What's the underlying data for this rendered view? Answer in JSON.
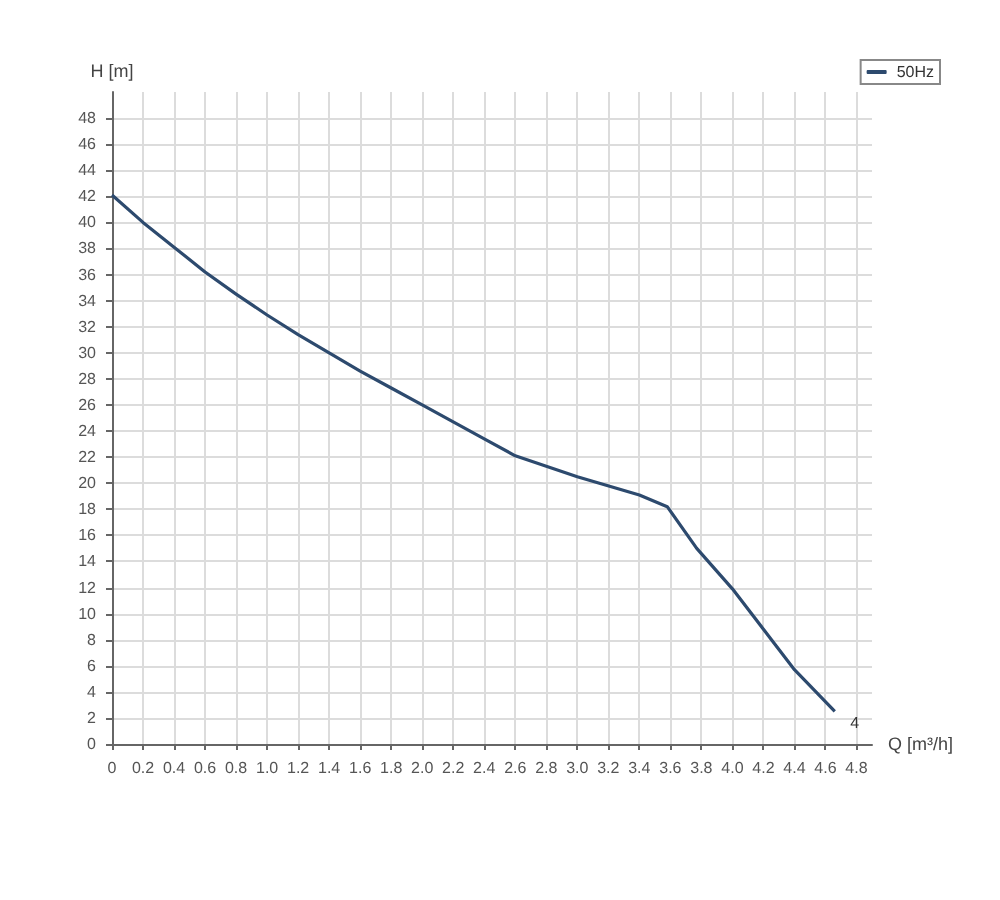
{
  "chart_data": {
    "type": "line",
    "xlabel": "Q [m³/h]",
    "ylabel": "H [m]",
    "x": [
      0,
      0.2,
      0.4,
      0.6,
      0.8,
      1.0,
      1.2,
      1.4,
      1.6,
      1.8,
      2.0,
      2.2,
      2.4,
      2.6,
      3.0,
      3.4,
      3.58,
      3.77,
      4.0,
      4.2,
      4.4,
      4.66
    ],
    "series": [
      {
        "name": "50Hz",
        "color": "#2d4a6e",
        "values": [
          42.1,
          40.0,
          38.1,
          36.2,
          34.5,
          32.9,
          31.4,
          30.0,
          28.6,
          27.3,
          26.0,
          24.7,
          23.4,
          22.1,
          20.5,
          19.1,
          18.2,
          15.0,
          11.9,
          8.8,
          5.7,
          2.5
        ]
      }
    ],
    "annotations": [
      "4"
    ],
    "xlim": [
      0,
      4.9
    ],
    "ylim": [
      0,
      50
    ],
    "xticks": [
      0,
      {
        "value": 0.2,
        "label": "0.2"
      },
      {
        "value": 0.4,
        "label": "0.4"
      },
      {
        "value": 0.6,
        "label": "0.6"
      },
      {
        "value": 0.8,
        "label": "0.8"
      },
      {
        "value": 1.0,
        "label": "1.0"
      },
      {
        "value": 1.2,
        "label": "1.2"
      },
      {
        "value": 1.4,
        "label": "1.4"
      },
      {
        "value": 1.6,
        "label": "1.6"
      },
      {
        "value": 1.8,
        "label": "1.8"
      },
      {
        "value": 2.0,
        "label": "2.0"
      },
      {
        "value": 2.2,
        "label": "2.2"
      },
      {
        "value": 2.4,
        "label": "2.4"
      },
      {
        "value": 2.6,
        "label": "2.6"
      },
      {
        "value": 2.8,
        "label": "2.8"
      },
      {
        "value": 3.0,
        "label": "3.0"
      },
      {
        "value": 3.2,
        "label": "3.2"
      },
      {
        "value": 3.4,
        "label": "3.4"
      },
      {
        "value": 3.6,
        "label": "3.6"
      },
      {
        "value": 3.8,
        "label": "3.8"
      },
      {
        "value": 4.0,
        "label": "4.0"
      },
      {
        "value": 4.2,
        "label": "4.2"
      },
      {
        "value": 4.4,
        "label": "4.4"
      },
      {
        "value": 4.6,
        "label": "4.6"
      },
      {
        "value": 4.8,
        "label": "4.8"
      }
    ],
    "yticks": [
      0,
      2,
      4,
      6,
      8,
      10,
      12,
      14,
      16,
      18,
      20,
      22,
      24,
      26,
      28,
      30,
      32,
      34,
      36,
      38,
      40,
      42,
      44,
      46,
      48
    ],
    "grid": true,
    "legend": "top right",
    "marker": "none",
    "line_style": "solid"
  }
}
